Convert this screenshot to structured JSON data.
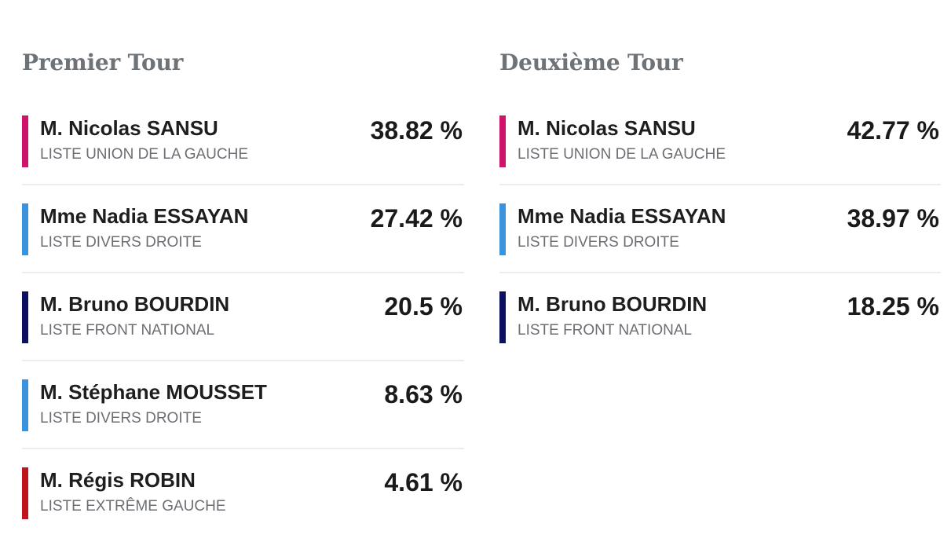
{
  "colors": {
    "union_gauche": "#d0136a",
    "divers_droite": "#3a93dc",
    "front_national": "#0d1060",
    "extreme_gauche": "#c0141d",
    "title_gray": "#6e7378",
    "list_gray": "#6b6f74"
  },
  "rounds": [
    {
      "title": "Premier Tour",
      "results": [
        {
          "candidate": "M. Nicolas SANSU",
          "list": "LISTE UNION DE LA GAUCHE",
          "percent": "38.82 %",
          "color": "#d0136a"
        },
        {
          "candidate": "Mme Nadia ESSAYAN",
          "list": "LISTE DIVERS DROITE",
          "percent": "27.42 %",
          "color": "#3a93dc"
        },
        {
          "candidate": "M. Bruno BOURDIN",
          "list": "LISTE FRONT NATIONAL",
          "percent": "20.5 %",
          "color": "#0d1060"
        },
        {
          "candidate": "M. Stéphane MOUSSET",
          "list": "LISTE DIVERS DROITE",
          "percent": "8.63 %",
          "color": "#3a93dc"
        },
        {
          "candidate": "M. Régis ROBIN",
          "list": "LISTE EXTRÊME GAUCHE",
          "percent": "4.61 %",
          "color": "#c0141d"
        }
      ]
    },
    {
      "title": "Deuxième Tour",
      "results": [
        {
          "candidate": "M. Nicolas SANSU",
          "list": "LISTE UNION DE LA GAUCHE",
          "percent": "42.77 %",
          "color": "#d0136a"
        },
        {
          "candidate": "Mme Nadia ESSAYAN",
          "list": "LISTE DIVERS DROITE",
          "percent": "38.97 %",
          "color": "#3a93dc"
        },
        {
          "candidate": "M. Bruno BOURDIN",
          "list": "LISTE FRONT NATIONAL",
          "percent": "18.25 %",
          "color": "#0d1060"
        }
      ]
    }
  ]
}
